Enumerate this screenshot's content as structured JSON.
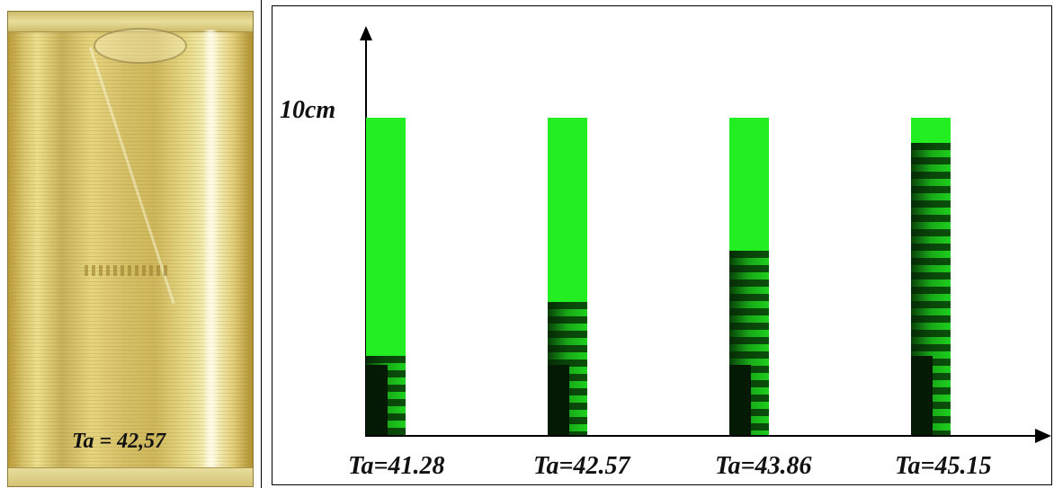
{
  "photo": {
    "label": "Ta = 42,57"
  },
  "figure": {
    "y_axis_label": "10cm",
    "columns": [
      {
        "label": "Ta=41.28",
        "vortex_fraction": 0.25,
        "dark_fraction": 0.22
      },
      {
        "label": "Ta=42.57",
        "vortex_fraction": 0.42,
        "dark_fraction": 0.22
      },
      {
        "label": "Ta=43.86",
        "vortex_fraction": 0.58,
        "dark_fraction": 0.22
      },
      {
        "label": "Ta=45.15",
        "vortex_fraction": 0.92,
        "dark_fraction": 0.25
      }
    ],
    "colors": {
      "column": "#22ee22",
      "vortex": "#000000"
    }
  }
}
